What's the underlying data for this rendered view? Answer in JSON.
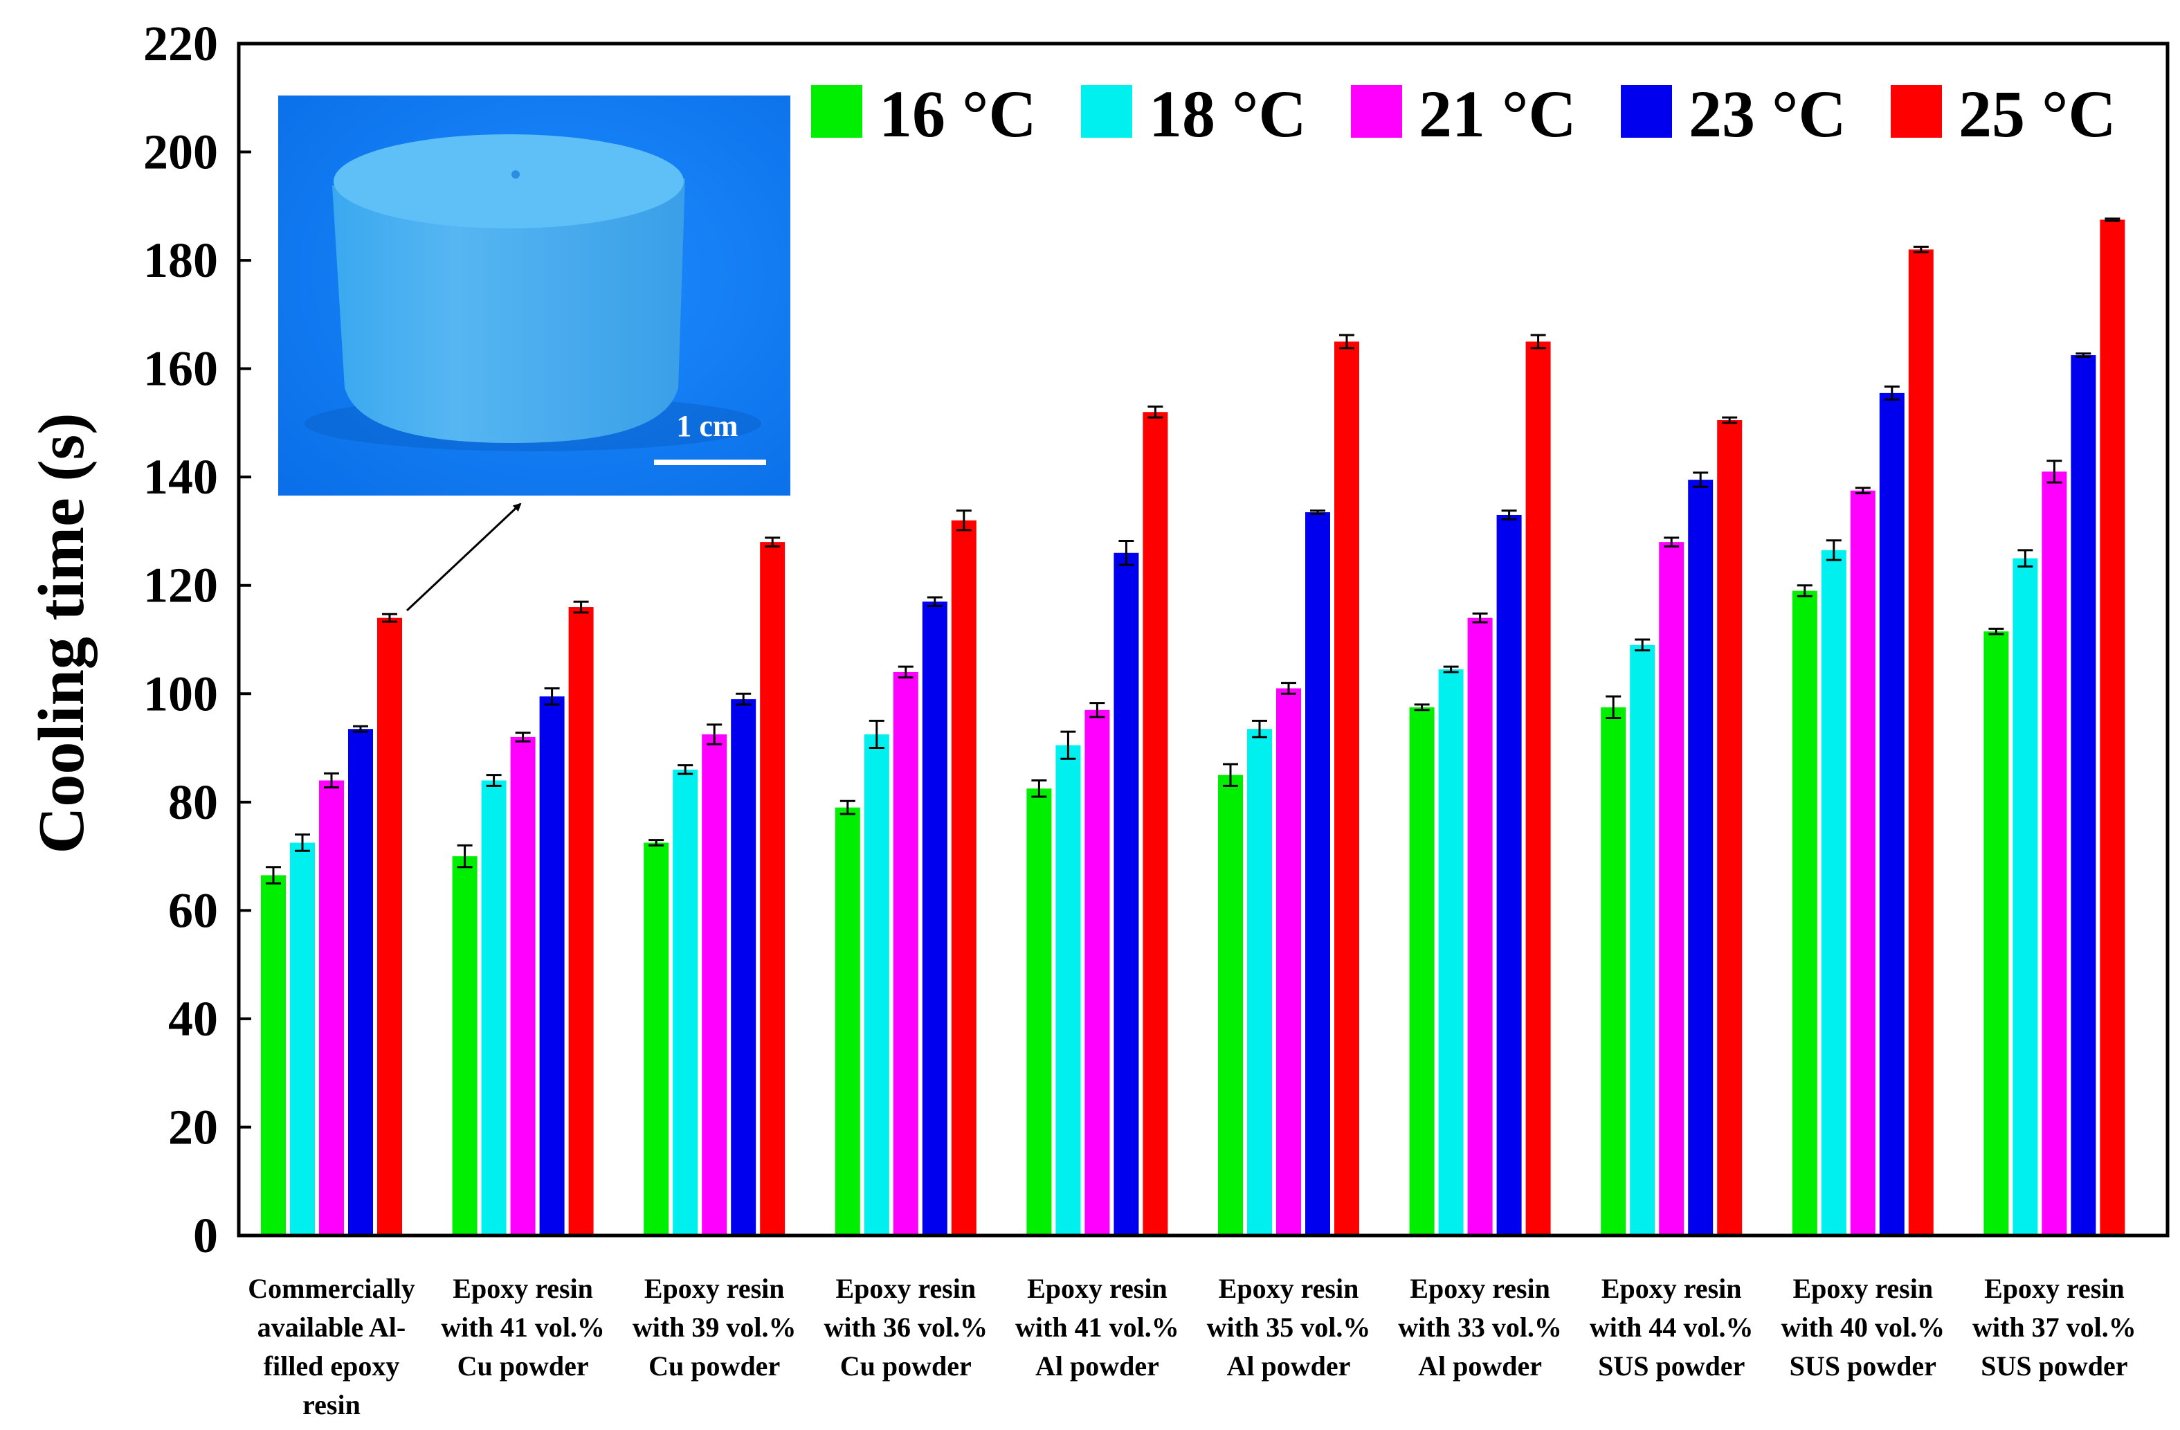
{
  "chart_data": {
    "type": "bar",
    "ylabel": "Cooling time (s)",
    "xlabel": "",
    "ylim": [
      0,
      220
    ],
    "yticks": [
      0,
      20,
      40,
      60,
      80,
      100,
      120,
      140,
      160,
      180,
      200,
      220
    ],
    "grid": false,
    "legend_position": "top-right",
    "categories": [
      [
        "Commercially",
        "available Al-",
        "filled epoxy",
        "resin"
      ],
      [
        "Epoxy resin",
        "with 41 vol.%",
        "Cu powder"
      ],
      [
        "Epoxy resin",
        "with 39 vol.%",
        "Cu powder"
      ],
      [
        "Epoxy resin",
        "with 36 vol.%",
        "Cu powder"
      ],
      [
        "Epoxy resin",
        "with 41 vol.%",
        "Al powder"
      ],
      [
        "Epoxy resin",
        "with 35 vol.%",
        "Al powder"
      ],
      [
        "Epoxy resin",
        "with 33 vol.%",
        "Al powder"
      ],
      [
        "Epoxy resin",
        "with 44 vol.%",
        "SUS powder"
      ],
      [
        "Epoxy resin",
        "with 40 vol.%",
        "SUS powder"
      ],
      [
        "Epoxy resin",
        "with 37 vol.%",
        "SUS powder"
      ]
    ],
    "series": [
      {
        "name": "16 °C",
        "color": "#00ee00",
        "values": [
          66.5,
          70,
          72.5,
          79,
          82.5,
          85,
          97.5,
          97.5,
          119,
          111.5
        ],
        "errors": [
          1.5,
          2,
          0.5,
          1.2,
          1.5,
          2,
          0.5,
          2,
          1,
          0.5
        ]
      },
      {
        "name": "18 °C",
        "color": "#00f0f0",
        "values": [
          72.5,
          84,
          86,
          92.5,
          90.5,
          93.5,
          104.5,
          109,
          126.5,
          125
        ],
        "errors": [
          1.5,
          1,
          0.8,
          2.5,
          2.5,
          1.5,
          0.5,
          1,
          1.8,
          1.5
        ]
      },
      {
        "name": "21 °C",
        "color": "#ff00ff",
        "values": [
          84,
          92,
          92.5,
          104,
          97,
          101,
          114,
          128,
          137.5,
          141
        ],
        "errors": [
          1.3,
          0.8,
          1.8,
          1,
          1.3,
          1,
          0.8,
          0.8,
          0.5,
          2
        ]
      },
      {
        "name": "23 °C",
        "color": "#0000ee",
        "values": [
          93.5,
          99.5,
          99,
          117,
          126,
          133.5,
          133,
          139.5,
          155.5,
          162.5
        ],
        "errors": [
          0.5,
          1.5,
          1,
          0.8,
          2.2,
          0.3,
          0.8,
          1.3,
          1.2,
          0.3
        ]
      },
      {
        "name": "25 °C",
        "color": "#ff0000",
        "values": [
          114,
          116,
          128,
          132,
          152,
          165,
          165,
          150.5,
          182,
          187.5
        ],
        "errors": [
          0.7,
          1,
          0.8,
          1.8,
          1,
          1.2,
          1.2,
          0.5,
          0.5,
          0.2
        ]
      }
    ],
    "annotations": {
      "inset_scale_bar": "1 cm"
    }
  }
}
